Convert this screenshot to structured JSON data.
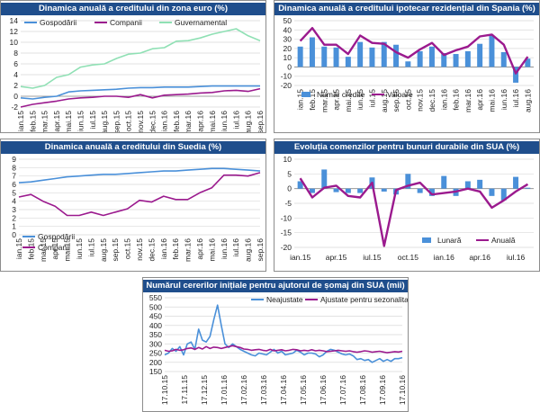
{
  "colors": {
    "blue": "#4a90d9",
    "magenta": "#9b1a8e",
    "green": "#8fe0b4",
    "title_bg": "#1f4e8c",
    "grid": "#d9d9d9"
  },
  "chart_data": [
    {
      "id": "euro",
      "type": "line",
      "title": "Dinamica anuală a creditului din zona euro (%)",
      "categories": [
        "ian.15",
        "feb.15",
        "mar.15",
        "apr.15",
        "mai.15",
        "iun.15",
        "iul.15",
        "aug.15",
        "sep.15",
        "oct.15",
        "nov.15",
        "dec.15",
        "ian.16",
        "feb.16",
        "mar.16",
        "apr.16",
        "mai.16",
        "iun.16",
        "iul.16",
        "aug.16",
        "sep.16"
      ],
      "x_tick_labels": [
        "ian.15",
        "feb.15",
        "mar.15",
        "apr.15",
        "mai.15",
        "iun.15",
        "iul.15",
        "aug.15",
        "sep.15",
        "oct.15",
        "nov.15",
        "dec.15",
        "ian.16",
        "feb.16",
        "mar.16",
        "apr.16",
        "mai.16",
        "iun.16",
        "iul.16",
        "aug.16",
        "sep.16"
      ],
      "y_ticks": [
        -2,
        0,
        2,
        4,
        6,
        8,
        10,
        12,
        14
      ],
      "ylim": [
        -2,
        14
      ],
      "legend_position": "top",
      "series": [
        {
          "name": "Gospodării",
          "color": "#4a90d9",
          "values": [
            -0.3,
            -0.5,
            -0.2,
            0.0,
            0.8,
            1.0,
            1.1,
            1.2,
            1.3,
            1.5,
            1.6,
            1.6,
            1.7,
            1.7,
            1.7,
            1.8,
            1.9,
            1.9,
            1.9,
            1.9,
            1.9
          ]
        },
        {
          "name": "Companii",
          "color": "#9b1a8e",
          "values": [
            -2.0,
            -1.5,
            -1.2,
            -0.9,
            -0.5,
            -0.3,
            -0.2,
            0.0,
            0.0,
            -0.2,
            0.3,
            -0.3,
            0.2,
            0.3,
            0.4,
            0.6,
            0.7,
            1.0,
            1.1,
            0.9,
            1.4
          ]
        },
        {
          "name": "Guvernamental",
          "color": "#8fe0b4",
          "values": [
            1.8,
            1.5,
            2.0,
            3.5,
            4.0,
            5.4,
            5.8,
            6.0,
            7.0,
            7.8,
            8.0,
            8.8,
            9.0,
            10.2,
            10.3,
            10.8,
            11.5,
            12.0,
            12.5,
            11.2,
            10.3
          ]
        }
      ]
    },
    {
      "id": "spain",
      "type": "bar+line",
      "title": "Dinamica anuală a creditului ipotecar rezidențial din Spania (%)",
      "categories": [
        "ian.15",
        "feb.15",
        "mar.15",
        "apr.15",
        "mai.15",
        "iun.15",
        "iul.15",
        "aug.15",
        "sep.15",
        "oct.15",
        "nov.15",
        "dec.15",
        "ian.16",
        "feb.16",
        "mar.16",
        "apr.16",
        "mai.16",
        "iun.16",
        "iul.16",
        "aug.16"
      ],
      "x_tick_labels": [
        "ian.15",
        "feb.15",
        "mar.15",
        "apr.15",
        "mai.15",
        "iun.15",
        "iul.15",
        "aug.15",
        "sep.15",
        "oct.15",
        "nov.15",
        "dec.15",
        "ian.16",
        "feb.16",
        "mar.16",
        "apr.16",
        "mai.16",
        "iun.16",
        "iul.16",
        "aug.16"
      ],
      "y_ticks": [
        -20,
        -10,
        0,
        10,
        20,
        30,
        40,
        50
      ],
      "ylim": [
        -20,
        50
      ],
      "legend_position": "bottom",
      "series": [
        {
          "name": "Număr credite",
          "kind": "bar",
          "color": "#4a90d9",
          "values": [
            22,
            32,
            22,
            21,
            11,
            27,
            21,
            27,
            24,
            6,
            17,
            22,
            15,
            14,
            17,
            25,
            34,
            16,
            -17,
            9
          ]
        },
        {
          "name": "Valoare",
          "kind": "line",
          "color": "#9b1a8e",
          "values": [
            28,
            42,
            24,
            24,
            14,
            34,
            26,
            25,
            16,
            10,
            19,
            26,
            13,
            18,
            22,
            33,
            35,
            24,
            -7,
            11
          ]
        }
      ]
    },
    {
      "id": "sweden",
      "type": "line",
      "title": "Dinamica anuală a creditului din Suedia (%)",
      "categories": [
        "ian.15",
        "feb.15",
        "mar.15",
        "apr.15",
        "mai.15",
        "iun.15",
        "iul.15",
        "aug.15",
        "sep.15",
        "oct.15",
        "nov.15",
        "dec.15",
        "ian.16",
        "feb.16",
        "mar.16",
        "apr.16",
        "mai.16",
        "iun.16",
        "iul.16",
        "aug.16",
        "sep.16"
      ],
      "x_tick_labels": [
        "ian.15",
        "feb.15",
        "mar.15",
        "apr.15",
        "mai.15",
        "iun.15",
        "iul.15",
        "aug.15",
        "sep.15",
        "oct.15",
        "nov.15",
        "dec.15",
        "ian.16",
        "feb.16",
        "mar.16",
        "apr.16",
        "mai.16",
        "iun.16",
        "iul.16",
        "aug.16",
        "sep.16"
      ],
      "y_ticks": [
        0,
        1,
        2,
        3,
        4,
        5,
        6,
        7,
        8,
        9
      ],
      "ylim": [
        0,
        9
      ],
      "legend_position": "bottom-left",
      "series": [
        {
          "name": "Gospodării",
          "color": "#4a90d9",
          "values": [
            6.2,
            6.3,
            6.5,
            6.7,
            6.9,
            7.0,
            7.1,
            7.2,
            7.2,
            7.3,
            7.4,
            7.5,
            7.6,
            7.6,
            7.7,
            7.8,
            7.9,
            7.9,
            7.8,
            7.7,
            7.6
          ]
        },
        {
          "name": "Companii",
          "color": "#9b1a8e",
          "values": [
            4.5,
            4.8,
            4.0,
            3.4,
            2.3,
            2.3,
            2.7,
            2.3,
            2.7,
            3.1,
            4.1,
            3.9,
            4.6,
            4.2,
            4.2,
            5.0,
            5.6,
            7.1,
            7.1,
            7.0,
            7.4
          ]
        }
      ]
    },
    {
      "id": "usa_durable",
      "type": "bar+line",
      "title": "Evoluția comenzilor pentru bunuri durabile din SUA (%)",
      "categories": [
        "ian.15",
        "feb.15",
        "mar.15",
        "apr.15",
        "mai.15",
        "iun.15",
        "iul.15",
        "aug.15",
        "sep.15",
        "oct.15",
        "nov.15",
        "dec.15",
        "ian.16",
        "feb.16",
        "mar.16",
        "apr.16",
        "mai.16",
        "iun.16",
        "iul.16",
        "aug.16"
      ],
      "x_tick_labels": [
        "ian.15",
        "",
        "",
        "apr.15",
        "",
        "",
        "iul.15",
        "",
        "",
        "oct.15",
        "",
        "",
        "ian.16",
        "",
        "",
        "apr.16",
        "",
        "",
        "iul.16",
        ""
      ],
      "y_ticks": [
        -20,
        -15,
        -10,
        -5,
        0,
        5,
        10
      ],
      "ylim": [
        -20,
        10
      ],
      "legend_position": "bottom-right",
      "series": [
        {
          "name": "Lunară",
          "kind": "bar",
          "color": "#4a90d9",
          "values": [
            2.5,
            -1.5,
            6.5,
            -1.2,
            -1.5,
            -1.5,
            3.8,
            -1.0,
            -2.0,
            5.0,
            -1.5,
            -2.5,
            4.3,
            -2.5,
            2.5,
            3.0,
            -2.5,
            -4.0,
            4.0,
            0.3
          ]
        },
        {
          "name": "Anuală",
          "kind": "line",
          "color": "#9b1a8e",
          "values": [
            3.5,
            -3.0,
            0.3,
            1.0,
            -2.5,
            -3.0,
            2.0,
            -19.5,
            -0.5,
            1.0,
            2.0,
            -2.0,
            -1.5,
            -1.0,
            0.0,
            -1.0,
            -6.5,
            -4.0,
            -1.0,
            1.5
          ]
        }
      ]
    },
    {
      "id": "usa_jobless",
      "type": "line",
      "title": "Numărul cererilor inițiale pentru ajutorul de șomaj din SUA (mii)",
      "x_tick_labels": [
        "17.10.15",
        "17.11.15",
        "17.12.15",
        "17.01.16",
        "17.02.16",
        "17.03.16",
        "17.04.16",
        "17.05.16",
        "17.06.16",
        "17.07.16",
        "17.08.16",
        "17.09.16",
        "17.10.16"
      ],
      "y_ticks": [
        150,
        200,
        250,
        300,
        350,
        400,
        450,
        500,
        550
      ],
      "ylim": [
        150,
        550
      ],
      "legend_position": "top-right",
      "series": [
        {
          "name": "Neajustate",
          "color": "#4a90d9",
          "values": [
            240,
            250,
            275,
            260,
            285,
            240,
            300,
            310,
            270,
            380,
            320,
            310,
            340,
            430,
            510,
            400,
            300,
            280,
            300,
            285,
            270,
            260,
            250,
            240,
            235,
            250,
            245,
            240,
            255,
            270,
            250,
            260,
            240,
            245,
            250,
            265,
            255,
            240,
            250,
            250,
            245,
            230,
            240,
            260,
            270,
            265,
            255,
            245,
            240,
            245,
            235,
            215,
            220,
            210,
            215,
            200,
            210,
            220,
            205,
            215,
            205,
            220,
            220,
            225
          ]
        },
        {
          "name": "Ajustate pentru sezonalitate",
          "color": "#9b1a8e",
          "values": [
            265,
            260,
            262,
            270,
            265,
            268,
            275,
            278,
            270,
            280,
            272,
            285,
            275,
            282,
            280,
            275,
            280,
            285,
            290,
            285,
            280,
            272,
            270,
            265,
            268,
            270,
            265,
            262,
            270,
            262,
            265,
            268,
            262,
            265,
            270,
            268,
            262,
            265,
            262,
            268,
            262,
            265,
            262,
            258,
            260,
            262,
            265,
            262,
            260,
            262,
            258,
            255,
            258,
            262,
            260,
            255,
            258,
            260,
            256,
            252,
            255,
            258,
            256,
            260
          ]
        }
      ]
    }
  ]
}
